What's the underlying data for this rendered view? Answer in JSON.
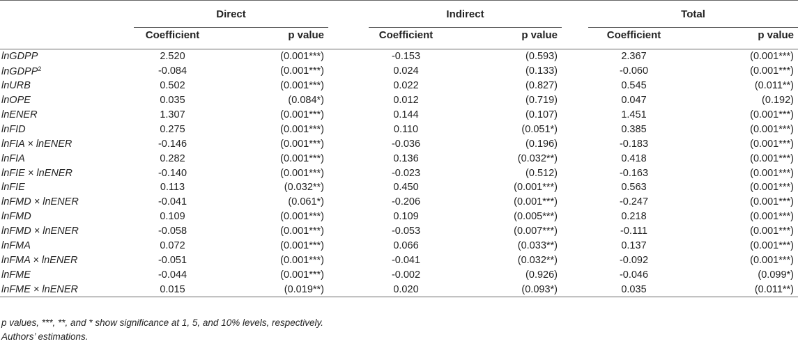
{
  "headers": {
    "groups": [
      "Direct",
      "Indirect",
      "Total"
    ],
    "coefficient": "Coefficient",
    "pvalue": "p value"
  },
  "rows": [
    {
      "var": "lnGDPP",
      "sup": "",
      "d_c": "2.520",
      "d_p": "(0.001***)",
      "i_c": "-0.153",
      "i_p": "(0.593)",
      "t_c": "2.367",
      "t_p": "(0.001***)"
    },
    {
      "var": "lnGDPP",
      "sup": "2",
      "d_c": "-0.084",
      "d_p": "(0.001***)",
      "i_c": "0.024",
      "i_p": "(0.133)",
      "t_c": "-0.060",
      "t_p": "(0.001***)"
    },
    {
      "var": "lnURB",
      "sup": "",
      "d_c": "0.502",
      "d_p": "(0.001***)",
      "i_c": "0.022",
      "i_p": "(0.827)",
      "t_c": "0.545",
      "t_p": "(0.011**)"
    },
    {
      "var": "lnOPE",
      "sup": "",
      "d_c": "0.035",
      "d_p": "(0.084*)",
      "i_c": "0.012",
      "i_p": "(0.719)",
      "t_c": "0.047",
      "t_p": "(0.192)"
    },
    {
      "var": "lnENER",
      "sup": "",
      "d_c": "1.307",
      "d_p": "(0.001***)",
      "i_c": "0.144",
      "i_p": "(0.107)",
      "t_c": "1.451",
      "t_p": "(0.001***)"
    },
    {
      "var": "lnFID",
      "sup": "",
      "d_c": "0.275",
      "d_p": "(0.001***)",
      "i_c": "0.110",
      "i_p": "(0.051*)",
      "t_c": "0.385",
      "t_p": "(0.001***)"
    },
    {
      "var": "lnFIA × lnENER",
      "sup": "",
      "d_c": "-0.146",
      "d_p": "(0.001***)",
      "i_c": "-0.036",
      "i_p": "(0.196)",
      "t_c": "-0.183",
      "t_p": "(0.001***)"
    },
    {
      "var": "lnFIA",
      "sup": "",
      "d_c": "0.282",
      "d_p": "(0.001***)",
      "i_c": "0.136",
      "i_p": "(0.032**)",
      "t_c": "0.418",
      "t_p": "(0.001***)"
    },
    {
      "var": "lnFIE × lnENER",
      "sup": "",
      "d_c": "-0.140",
      "d_p": "(0.001***)",
      "i_c": "-0.023",
      "i_p": "(0.512)",
      "t_c": "-0.163",
      "t_p": "(0.001***)"
    },
    {
      "var": "lnFIE",
      "sup": "",
      "d_c": "0.113",
      "d_p": "(0.032**)",
      "i_c": "0.450",
      "i_p": "(0.001***)",
      "t_c": "0.563",
      "t_p": "(0.001***)"
    },
    {
      "var": "lnFMD × lnENER",
      "sup": "",
      "d_c": "-0.041",
      "d_p": "(0.061*)",
      "i_c": "-0.206",
      "i_p": "(0.001***)",
      "t_c": "-0.247",
      "t_p": "(0.001***)"
    },
    {
      "var": "lnFMD",
      "sup": "",
      "d_c": "0.109",
      "d_p": "(0.001***)",
      "i_c": "0.109",
      "i_p": "(0.005***)",
      "t_c": "0.218",
      "t_p": "(0.001***)"
    },
    {
      "var": "lnFMD × lnENER",
      "sup": "",
      "d_c": "-0.058",
      "d_p": "(0.001***)",
      "i_c": "-0.053",
      "i_p": "(0.007***)",
      "t_c": "-0.111",
      "t_p": "(0.001***)"
    },
    {
      "var": "lnFMA",
      "sup": "",
      "d_c": "0.072",
      "d_p": "(0.001***)",
      "i_c": "0.066",
      "i_p": "(0.033**)",
      "t_c": "0.137",
      "t_p": "(0.001***)"
    },
    {
      "var": "lnFMA × lnENER",
      "sup": "",
      "d_c": "-0.051",
      "d_p": "(0.001***)",
      "i_c": "-0.041",
      "i_p": "(0.032**)",
      "t_c": "-0.092",
      "t_p": "(0.001***)"
    },
    {
      "var": "lnFME",
      "sup": "",
      "d_c": "-0.044",
      "d_p": "(0.001***)",
      "i_c": "-0.002",
      "i_p": "(0.926)",
      "t_c": "-0.046",
      "t_p": "(0.099*)"
    },
    {
      "var": "lnFME × lnENER",
      "sup": "",
      "d_c": "0.015",
      "d_p": "(0.019**)",
      "i_c": "0.020",
      "i_p": "(0.093*)",
      "t_c": "0.035",
      "t_p": "(0.011**)"
    }
  ],
  "notes": [
    "p values, ***, **, and * show significance at 1, 5, and 10% levels, respectively.",
    "Authors’ estimations."
  ]
}
